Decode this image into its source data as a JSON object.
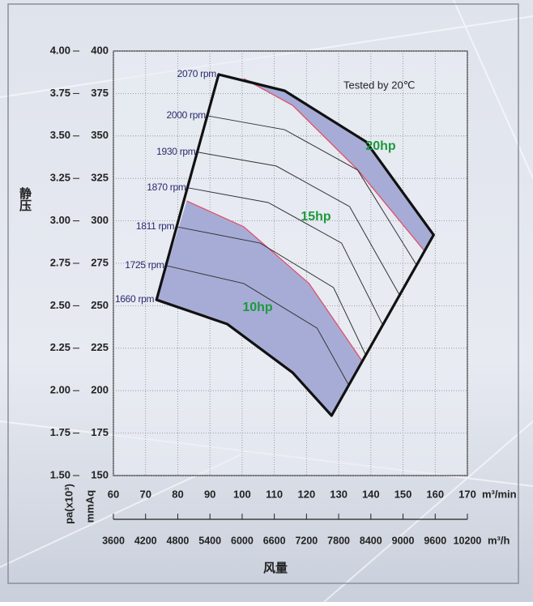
{
  "chart_data": {
    "type": "line",
    "y_title": "静压",
    "x_title": "风量",
    "x_unit": "m³/min",
    "x2_unit": "m³/h",
    "y_unit": "mmAq",
    "y2_unit": "pa(x10³)",
    "annotation": "Tested by 20℃",
    "xlim": [
      60,
      170
    ],
    "xticks": [
      60,
      70,
      80,
      90,
      100,
      110,
      120,
      130,
      140,
      150,
      160,
      170
    ],
    "x2lim": [
      3600,
      10200
    ],
    "x2ticks": [
      3600,
      4200,
      4800,
      5400,
      6000,
      6600,
      7200,
      7800,
      8400,
      9000,
      9600,
      10200
    ],
    "ylim": [
      150,
      400
    ],
    "yticks": [
      150,
      175,
      200,
      225,
      250,
      275,
      300,
      325,
      350,
      375,
      400
    ],
    "y2lim": [
      1.5,
      4
    ],
    "y2ticks": [
      {
        "value": 1.5,
        "label": "1.50"
      },
      {
        "value": 1.75,
        "label": "1.75"
      },
      {
        "value": 2,
        "label": "2.00"
      },
      {
        "value": 2.25,
        "label": "2.25"
      },
      {
        "value": 2.5,
        "label": "2.50"
      },
      {
        "value": 2.75,
        "label": "2.75"
      },
      {
        "value": 3,
        "label": "3.00"
      },
      {
        "value": 3.25,
        "label": "3.25"
      },
      {
        "value": 3.5,
        "label": "3.50"
      },
      {
        "value": 3.75,
        "label": "3.75"
      },
      {
        "value": 4,
        "label": "4.00"
      }
    ],
    "grid": true,
    "series": [
      {
        "name": "2070 rpm",
        "color": "#111111",
        "x": [
          92.7,
          113.2,
          138.5,
          159.5
        ],
        "values": [
          386.2,
          376.6,
          346.6,
          291.7
        ]
      },
      {
        "name": "2000 rpm",
        "color": "#333333",
        "x": [
          89.4,
          113.2,
          135.9,
          154.2
        ],
        "values": [
          361.8,
          353.7,
          329.9,
          274.0
        ]
      },
      {
        "name": "1930 rpm",
        "color": "#333333",
        "x": [
          86.3,
          110.6,
          133.4,
          148.9
        ],
        "values": [
          340.4,
          332.3,
          308.4,
          256.4
        ]
      },
      {
        "name": "1870 rpm",
        "color": "#333333",
        "x": [
          83.3,
          108.1,
          130.9,
          143.8
        ],
        "values": [
          319.4,
          310.8,
          286.9,
          238.3
        ]
      },
      {
        "name": "1811 rpm",
        "color": "#333333",
        "x": [
          79.7,
          105.6,
          128.4,
          138.5
        ],
        "values": [
          296.5,
          286.9,
          260.7,
          220.6
        ]
      },
      {
        "name": "1725 rpm",
        "color": "#333333",
        "x": [
          76.5,
          100.5,
          123.3,
          133.2
        ],
        "values": [
          273.6,
          263.1,
          236.8,
          203.0
        ]
      },
      {
        "name": "1660 rpm",
        "color": "#111111",
        "x": [
          73.4,
          95.4,
          115.7,
          127.8
        ],
        "values": [
          253.5,
          239.2,
          210.6,
          185.3
        ]
      }
    ],
    "power_limits": [
      {
        "color": "#e0506a",
        "fill": "#a7acd6",
        "x": [
          100.5,
          115.7,
          136.0,
          156.7
        ],
        "values": [
          383.8,
          368.0,
          329.9,
          282.2
        ]
      },
      {
        "color": "#e0506a",
        "fill": "#a7acd6",
        "x": [
          82.8,
          100.5,
          120.8,
          137.2
        ],
        "values": [
          311.7,
          296.5,
          263.1,
          217.7
        ]
      }
    ],
    "power_labels": [
      "20hp",
      "15hp",
      "10hp"
    ],
    "power_label_color": "#1c9a3c"
  }
}
